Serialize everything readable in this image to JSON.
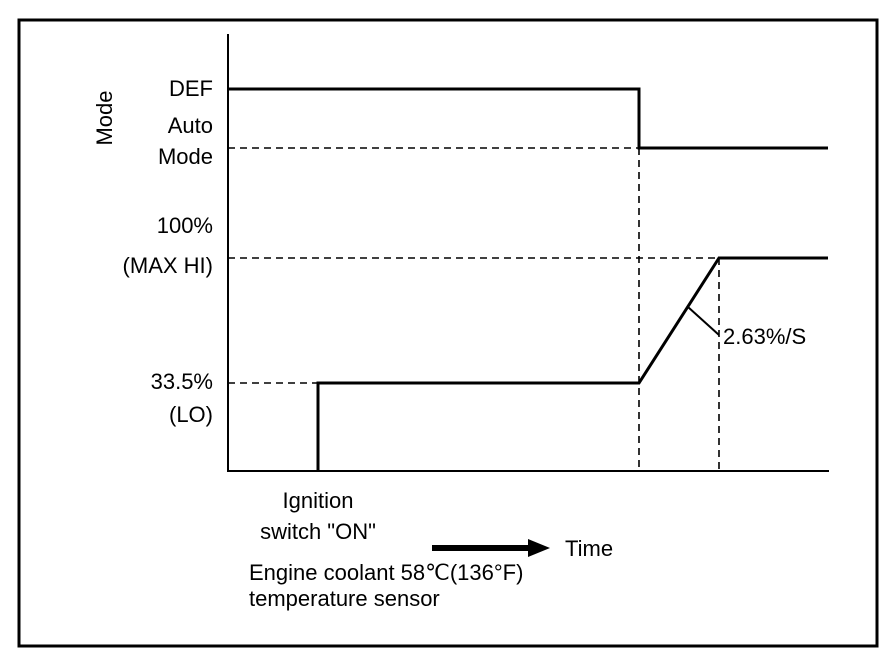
{
  "y_axis_title": "Mode",
  "mode_levels": {
    "def": "DEF",
    "auto_line1": "Auto",
    "auto_line2": "Mode"
  },
  "fan_levels": {
    "max_line1": "100%",
    "max_line2": "(MAX HI)",
    "lo_line1": "33.5%",
    "lo_line2": "(LO)"
  },
  "ramp_rate_label": "2.63%/S",
  "ignition": {
    "line1": "Ignition",
    "line2": "switch \"ON\""
  },
  "time_label": "Time",
  "sensor": {
    "line1": "Engine coolant  58℃(136°F)",
    "line2": "temperature sensor"
  },
  "colors": {
    "line": "#000000",
    "background": "#ffffff"
  }
}
